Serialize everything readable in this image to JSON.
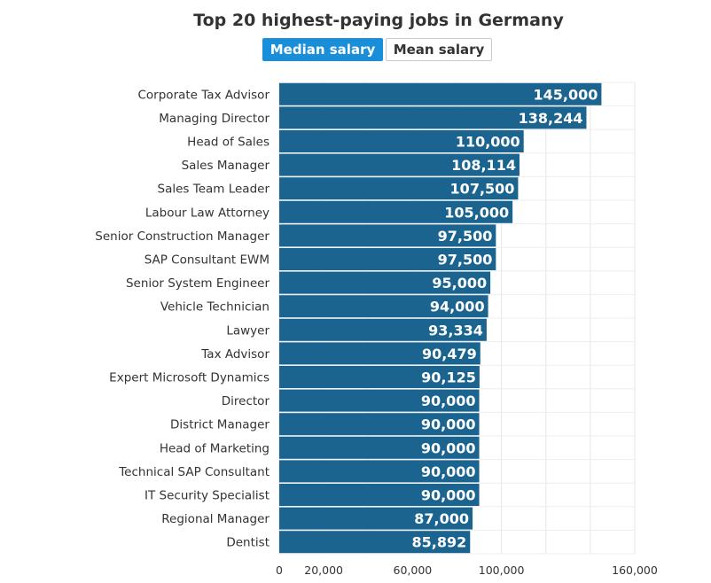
{
  "chart_data": {
    "type": "bar",
    "orientation": "horizontal",
    "title": "Top 20 highest-paying jobs in Germany",
    "toggle": {
      "options": [
        "Median salary",
        "Mean salary"
      ],
      "selected": "Median salary"
    },
    "categories": [
      "Corporate Tax Advisor",
      "Managing Director",
      "Head of Sales",
      "Sales Manager",
      "Sales Team Leader",
      "Labour Law Attorney",
      "Senior Construction Manager",
      "SAP Consultant EWM",
      "Senior System Engineer",
      "Vehicle Technician",
      "Lawyer",
      "Tax Advisor",
      "Expert Microsoft Dynamics",
      "Director",
      "District Manager",
      "Head of Marketing",
      "Technical SAP Consultant",
      "IT Security Specialist",
      "Regional Manager",
      "Dentist"
    ],
    "values": [
      145000,
      138244,
      110000,
      108114,
      107500,
      105000,
      97500,
      97500,
      95000,
      94000,
      93334,
      90479,
      90125,
      90000,
      90000,
      90000,
      90000,
      90000,
      87000,
      85892
    ],
    "value_labels": [
      "145,000",
      "138,244",
      "110,000",
      "108,114",
      "107,500",
      "105,000",
      "97,500",
      "97,500",
      "95,000",
      "94,000",
      "93,334",
      "90,479",
      "90,125",
      "90,000",
      "90,000",
      "90,000",
      "90,000",
      "90,000",
      "87,000",
      "85,892"
    ],
    "xlim": [
      0,
      160000
    ],
    "grid_step": 20000,
    "x_ticks": [
      0,
      20000,
      60000,
      100000,
      160000
    ],
    "x_tick_labels": [
      "0",
      "20,000",
      "60,000",
      "100,000",
      "160,000"
    ],
    "xlabel": "",
    "ylabel": "",
    "colors": {
      "bar": "#1b6490",
      "toggle_active": "#1a8fd9",
      "grid": "#e6e6e6"
    }
  }
}
